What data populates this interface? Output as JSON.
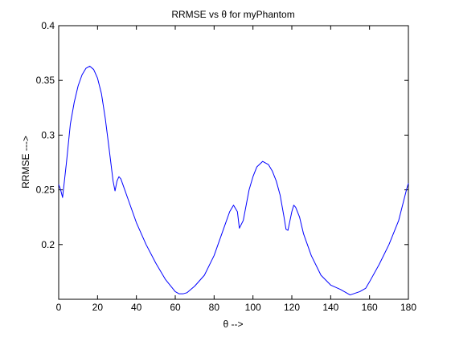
{
  "chart_data": {
    "type": "line",
    "title": "RRMSE vs θ for myPhantom",
    "xlabel": "θ -->",
    "ylabel": "RRMSE --->",
    "xlim": [
      0,
      180
    ],
    "ylim": [
      0.15,
      0.4
    ],
    "xticks": [
      0,
      20,
      40,
      60,
      80,
      100,
      120,
      140,
      160,
      180
    ],
    "yticks": [
      0.2,
      0.25,
      0.3,
      0.35,
      0.4
    ],
    "ytick_labels": [
      "0.2",
      "0.25",
      "0.3",
      "0.35",
      "0.4"
    ],
    "grid": false,
    "series": [
      {
        "color": "#0000ff",
        "x": [
          0,
          1,
          2,
          4,
          6,
          8,
          10,
          12,
          14,
          16,
          18,
          20,
          22,
          24,
          26,
          28,
          29,
          30,
          31,
          32,
          34,
          36,
          40,
          45,
          50,
          55,
          60,
          62,
          64,
          66,
          70,
          75,
          80,
          85,
          88,
          90,
          92,
          93,
          95,
          98,
          100,
          102,
          105,
          108,
          110,
          112,
          114,
          116,
          117,
          118,
          120,
          121,
          122,
          124,
          126,
          130,
          135,
          140,
          145,
          150,
          155,
          158,
          160,
          165,
          170,
          175,
          179,
          180
        ],
        "y": [
          0.255,
          0.25,
          0.243,
          0.275,
          0.31,
          0.33,
          0.345,
          0.355,
          0.361,
          0.363,
          0.36,
          0.352,
          0.338,
          0.315,
          0.287,
          0.258,
          0.249,
          0.258,
          0.262,
          0.26,
          0.25,
          0.24,
          0.22,
          0.2,
          0.183,
          0.168,
          0.157,
          0.155,
          0.155,
          0.156,
          0.162,
          0.172,
          0.19,
          0.215,
          0.23,
          0.236,
          0.23,
          0.215,
          0.222,
          0.25,
          0.262,
          0.271,
          0.276,
          0.273,
          0.267,
          0.258,
          0.245,
          0.225,
          0.214,
          0.213,
          0.23,
          0.236,
          0.234,
          0.225,
          0.21,
          0.19,
          0.172,
          0.163,
          0.159,
          0.154,
          0.157,
          0.16,
          0.166,
          0.182,
          0.2,
          0.222,
          0.25,
          0.256
        ]
      }
    ]
  }
}
